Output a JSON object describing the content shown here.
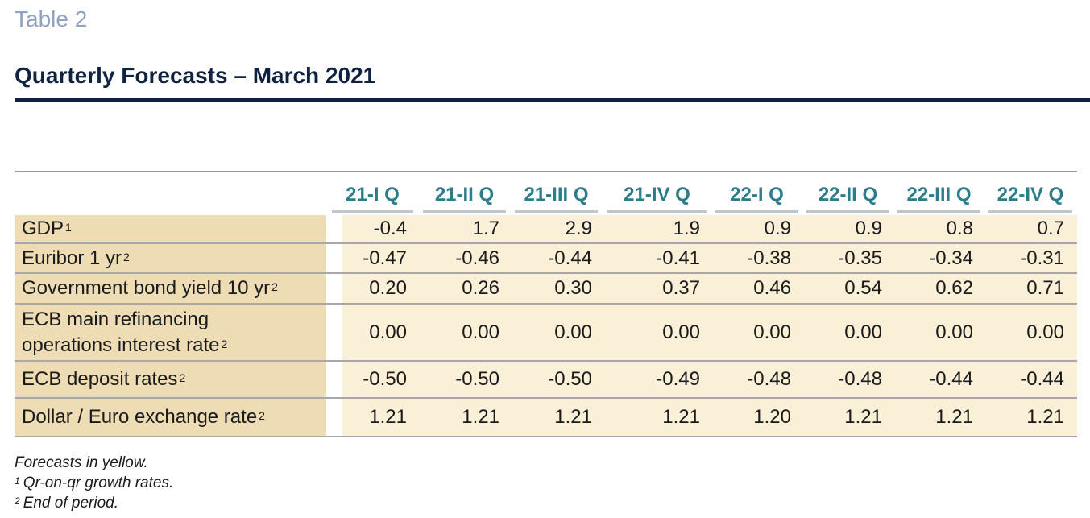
{
  "table_label": "Table 2",
  "title": "Quarterly Forecasts – March 2021",
  "columns": [
    "21-I Q",
    "21-II Q",
    "21-III Q",
    "21-IV Q",
    "22-I Q",
    "22-II Q",
    "22-III Q",
    "22-IV Q"
  ],
  "rows": [
    {
      "label": "GDP",
      "sup": "1",
      "values": [
        "-0.4",
        "1.7",
        "2.9",
        "1.9",
        "0.9",
        "0.9",
        "0.8",
        "0.7"
      ]
    },
    {
      "label": "Euribor 1 yr",
      "sup": "2",
      "values": [
        "-0.47",
        "-0.46",
        "-0.44",
        "-0.41",
        "-0.38",
        "-0.35",
        "-0.34",
        "-0.31"
      ]
    },
    {
      "label": "Government bond yield 10 yr",
      "sup": "2",
      "values": [
        "0.20",
        "0.26",
        "0.30",
        "0.37",
        "0.46",
        "0.54",
        "0.62",
        "0.71"
      ]
    },
    {
      "label": "ECB main refinancing operations interest rate",
      "sup": "2",
      "values": [
        "0.00",
        "0.00",
        "0.00",
        "0.00",
        "0.00",
        "0.00",
        "0.00",
        "0.00"
      ]
    },
    {
      "label": "ECB deposit rates",
      "sup": "2",
      "values": [
        "-0.50",
        "-0.50",
        "-0.50",
        "-0.49",
        "-0.48",
        "-0.48",
        "-0.44",
        "-0.44"
      ]
    },
    {
      "label": "Dollar / Euro exchange rate",
      "sup": "2",
      "values": [
        "1.21",
        "1.21",
        "1.21",
        "1.21",
        "1.20",
        "1.21",
        "1.21",
        "1.21"
      ]
    }
  ],
  "notes": {
    "forecast_note": "Forecasts in yellow.",
    "note1_mark": "1",
    "note1": "Qr-on-qr growth rates.",
    "note2_mark": "2",
    "note2": "End of period."
  },
  "colors": {
    "title": "#0f2340",
    "table_label": "#8fa3c0",
    "header_text": "#2a7d8a",
    "label_fill": "#eedcb5",
    "forecast_fill": "#faf0d8"
  }
}
